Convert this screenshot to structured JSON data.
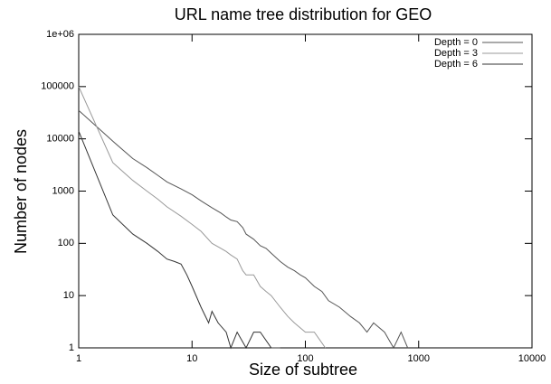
{
  "chart_data": {
    "type": "line",
    "title": "URL name tree distribution for GEO",
    "x_label": "Size of subtree",
    "y_label": "Number of nodes",
    "x_scale": "log",
    "y_scale": "log",
    "xlim": [
      1,
      10000
    ],
    "ylim": [
      1,
      1000000
    ],
    "xticks": [
      1,
      10,
      100,
      1000,
      10000
    ],
    "yticks": [
      1,
      10,
      100,
      1000,
      10000,
      100000,
      {
        "value": 1000000,
        "label": "1e+06"
      }
    ],
    "legend": "top-right",
    "series": [
      {
        "name": "Depth = 0",
        "color": "#555555",
        "x": [
          1,
          2,
          3,
          4,
          5,
          6,
          8,
          10,
          12,
          15,
          18,
          20,
          22,
          25,
          28,
          30,
          35,
          40,
          45,
          50,
          60,
          70,
          80,
          90,
          100,
          120,
          140,
          160,
          200,
          250,
          300,
          350,
          400,
          500,
          600,
          700,
          800
        ],
        "values": [
          35000,
          9000,
          4200,
          2800,
          2000,
          1500,
          1100,
          850,
          650,
          480,
          380,
          320,
          280,
          260,
          200,
          150,
          120,
          90,
          80,
          65,
          45,
          35,
          30,
          25,
          22,
          15,
          12,
          8,
          6,
          4,
          3,
          2,
          3,
          2,
          1,
          2,
          1
        ]
      },
      {
        "name": "Depth = 3",
        "color": "#999999",
        "x": [
          1,
          2,
          3,
          4,
          5,
          6,
          8,
          10,
          12,
          15,
          18,
          20,
          22,
          25,
          28,
          30,
          35,
          40,
          45,
          50,
          60,
          70,
          80,
          100,
          120,
          150
        ],
        "values": [
          100000,
          3500,
          1600,
          1000,
          700,
          500,
          330,
          230,
          170,
          100,
          80,
          70,
          60,
          50,
          30,
          25,
          25,
          15,
          12,
          10,
          6,
          4,
          3,
          2,
          2,
          1
        ]
      },
      {
        "name": "Depth = 6",
        "color": "#333333",
        "x": [
          1,
          2,
          3,
          4,
          5,
          6,
          7,
          8,
          9,
          10,
          12,
          14,
          15,
          17,
          20,
          22,
          25,
          30,
          35,
          40,
          50,
          60
        ],
        "values": [
          14000,
          350,
          150,
          100,
          70,
          50,
          45,
          40,
          25,
          15,
          6,
          3,
          5,
          3,
          2,
          1,
          2,
          1,
          2,
          2,
          1,
          1
        ]
      }
    ]
  }
}
